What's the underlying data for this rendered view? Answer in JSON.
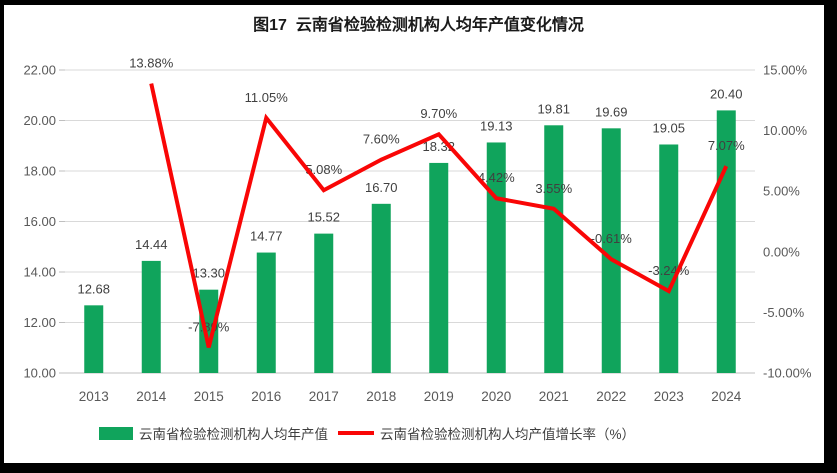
{
  "chart_data": {
    "type": "combo-bar-line",
    "title": "图17  云南省检验检测机构人均年产值变化情况",
    "categories": [
      "2013",
      "2014",
      "2015",
      "2016",
      "2017",
      "2018",
      "2019",
      "2020",
      "2021",
      "2022",
      "2023",
      "2024"
    ],
    "series": [
      {
        "name": "云南省检验检测机构人均年产值",
        "type": "bar",
        "axis": "left",
        "color": "#10A45C",
        "values": [
          12.68,
          14.44,
          13.3,
          14.77,
          15.52,
          16.7,
          18.32,
          19.13,
          19.81,
          19.69,
          19.05,
          20.4
        ],
        "labels": [
          "12.68",
          "14.44",
          "13.30",
          "14.77",
          "15.52",
          "16.70",
          "18.32",
          "19.13",
          "19.81",
          "19.69",
          "19.05",
          "20.40"
        ]
      },
      {
        "name": "云南省检验检测机构人均产值增长率（%）",
        "type": "line",
        "axis": "right",
        "color": "#F90606",
        "values": [
          null,
          13.88,
          -7.89,
          11.05,
          5.08,
          7.6,
          9.7,
          4.42,
          3.55,
          -0.61,
          -3.24,
          7.07
        ],
        "labels": [
          null,
          "13.88%",
          "-7.89%",
          "11.05%",
          "5.08%",
          "7.60%",
          "9.70%",
          "4.42%",
          "3.55%",
          "-0.61%",
          "-3.24%",
          "7.07%"
        ]
      }
    ],
    "left_axis": {
      "min": 10,
      "max": 22,
      "step": 2,
      "tick_labels": [
        "10.00",
        "12.00",
        "14.00",
        "16.00",
        "18.00",
        "20.00",
        "22.00"
      ]
    },
    "right_axis": {
      "min": -10,
      "max": 15,
      "step": 5,
      "tick_labels": [
        "-10.00%",
        "-5.00%",
        "0.00%",
        "5.00%",
        "10.00%",
        "15.00%"
      ]
    },
    "grid": true,
    "legend_position": "bottom"
  },
  "style_colors": {
    "gridline": "#D9D9D9",
    "axis_line": "#BFBFBF",
    "axis_text": "#595959",
    "data_label_text": "#404040",
    "frame": "#000000",
    "background": "#FFFFFF"
  }
}
